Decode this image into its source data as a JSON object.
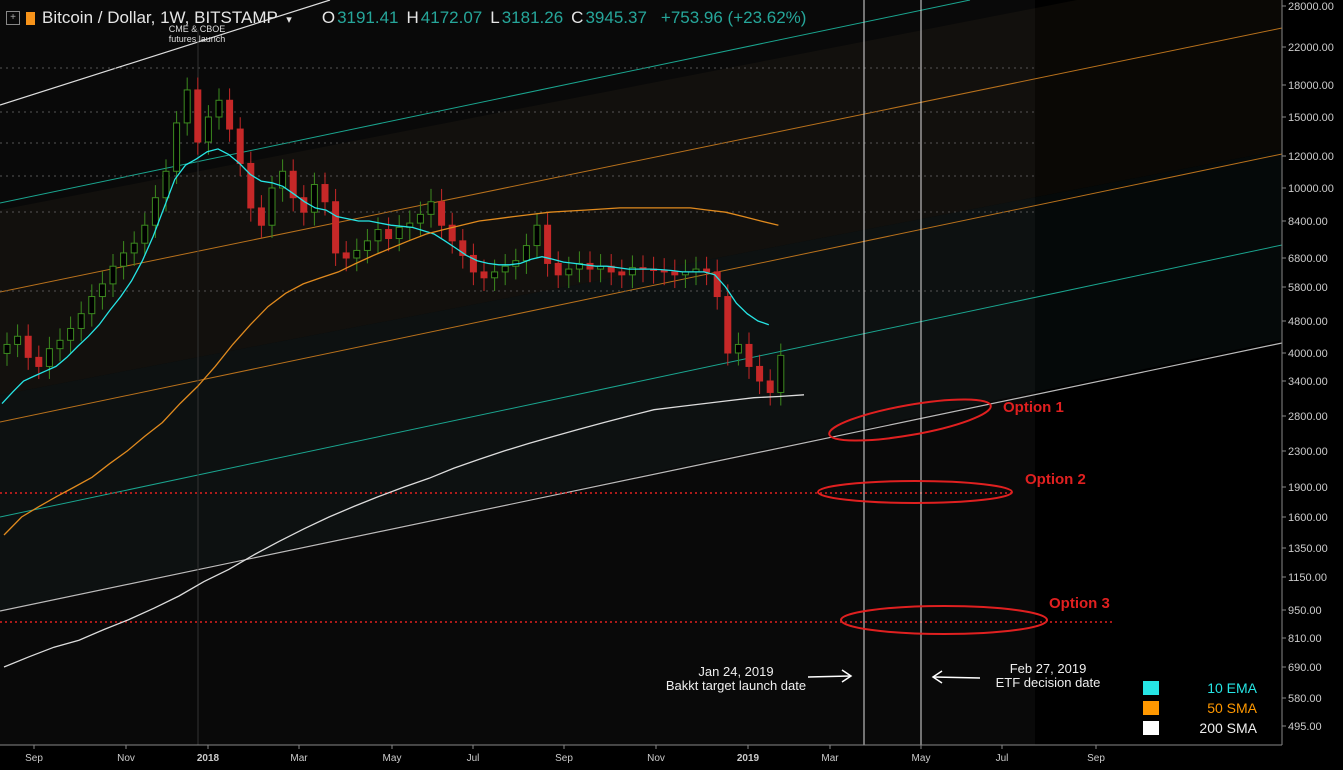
{
  "header": {
    "add_icon": "+",
    "symbol": "Bitcoin / Dollar, 1W, BITSTAMP",
    "caret": "▾",
    "o_label": "O",
    "o_value": "3191.41",
    "h_label": "H",
    "h_value": "4172.07",
    "l_label": "L",
    "l_value": "3181.26",
    "c_label": "C",
    "c_value": "3945.37",
    "change": "+753.96 (+23.62%)"
  },
  "annotations": {
    "cme": "CME & CBOE\nfutures launch",
    "bakkt": "Jan 24, 2019\nBakkt target launch date",
    "etf": "Feb 27, 2019\nETF decision date",
    "option1": "Option 1",
    "option2": "Option 2",
    "option3": "Option 3"
  },
  "legend": [
    {
      "label": "10 EMA",
      "color": "#26e5e5"
    },
    {
      "label": "50 SMA",
      "color": "#ff9800"
    },
    {
      "label": "200 SMA",
      "color": "#ffffff"
    }
  ],
  "chart_data": {
    "type": "candlestick",
    "y_scale": "log",
    "y_tick_labels": [
      "28000.00",
      "22000.00",
      "18000.00",
      "15000.00",
      "12000.00",
      "10000.00",
      "8400.00",
      "6800.00",
      "5800.00",
      "4800.00",
      "4000.00",
      "3400.00",
      "2800.00",
      "2300.00",
      "1900.00",
      "1600.00",
      "1350.00",
      "1150.00",
      "950.00",
      "810.00",
      "690.00",
      "580.00",
      "495.00"
    ],
    "x_tick_labels": [
      "Sep",
      "Nov",
      "2018",
      "Mar",
      "May",
      "Jul",
      "Sep",
      "Nov",
      "2019",
      "Mar",
      "May",
      "Jul",
      "Sep"
    ],
    "close_series": [
      4200,
      4400,
      3900,
      3700,
      4100,
      4300,
      4600,
      5000,
      5500,
      5900,
      6500,
      7000,
      7400,
      8200,
      9500,
      11000,
      14500,
      17500,
      13000,
      15000,
      16500,
      14000,
      11500,
      9000,
      8200,
      10000,
      11000,
      9500,
      8800,
      10200,
      9300,
      7000,
      6800,
      7100,
      7500,
      8000,
      7600,
      8100,
      8300,
      8700,
      9300,
      8200,
      7500,
      6900,
      6300,
      6100,
      6300,
      6500,
      6700,
      7300,
      8200,
      6600,
      6200,
      6400,
      6600,
      6400,
      6500,
      6300,
      6200,
      6450,
      6400,
      6350,
      6300,
      6200,
      6300,
      6400,
      6300,
      5500,
      4000,
      4200,
      3700,
      3400,
      3191,
      3945
    ],
    "ema10_series": [
      3000,
      3200,
      3400,
      3500,
      3600,
      3700,
      3900,
      4150,
      4400,
      4700,
      5100,
      5500,
      6000,
      6700,
      7700,
      9000,
      10500,
      11400,
      11800,
      12300,
      12500,
      12100,
      11500,
      10800,
      10400,
      10300,
      10100,
      9700,
      9300,
      9000,
      8900,
      8600,
      8500,
      8400,
      8400,
      8300,
      8200,
      8150,
      8100,
      7950,
      7800,
      7500,
      7200,
      6900,
      6700,
      6600,
      6550,
      6550,
      6600,
      6750,
      6850,
      6750,
      6650,
      6600,
      6550,
      6500,
      6500,
      6450,
      6400,
      6400,
      6400,
      6380,
      6350,
      6300,
      6300,
      6300,
      6200,
      5800,
      5300,
      5000,
      4800,
      4700
    ],
    "sma50_series": [
      1450,
      1600,
      1700,
      1800,
      1900,
      2000,
      2150,
      2300,
      2500,
      2700,
      3000,
      3300,
      3700,
      4200,
      4700,
      5200,
      5600,
      5900,
      6100,
      6300,
      6600,
      6900,
      7200,
      7500,
      7800,
      8000,
      8200,
      8400,
      8500,
      8600,
      8700,
      8800,
      8850,
      8900,
      8950,
      9000,
      9000,
      9000,
      9000,
      9000,
      8900,
      8800,
      8600,
      8400,
      8200
    ],
    "sma200_series": [
      690,
      730,
      770,
      800,
      850,
      900,
      960,
      1030,
      1120,
      1200,
      1300,
      1400,
      1500,
      1600,
      1700,
      1800,
      1900,
      1990,
      2100,
      2200,
      2300,
      2400,
      2500,
      2600,
      2700,
      2800,
      2900,
      2950,
      3000,
      3050,
      3100,
      3120,
      3150
    ]
  }
}
